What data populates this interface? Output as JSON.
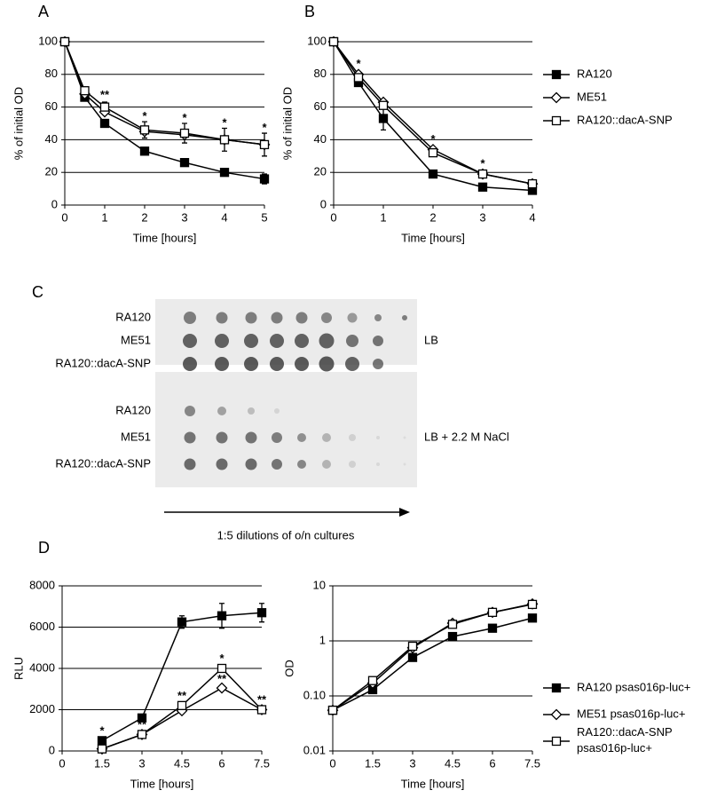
{
  "chart_data": [
    {
      "type": "line",
      "label": "A",
      "x_label": "Time [hours]",
      "y_label": "% of initial OD",
      "x": [
        0,
        0.5,
        1,
        2,
        3,
        4,
        5
      ],
      "xlim": [
        0,
        5
      ],
      "xticks": [
        0,
        1,
        2,
        3,
        4,
        5
      ],
      "ylim": [
        0,
        100
      ],
      "yticks": [
        0,
        20,
        40,
        60,
        80,
        100
      ],
      "grid": true,
      "series": [
        {
          "marker": "square-filled",
          "color": "#000000",
          "values": [
            100,
            66,
            50,
            33,
            26,
            20,
            16
          ],
          "errors": [
            0,
            2,
            2,
            2,
            2,
            2,
            3
          ]
        },
        {
          "marker": "diamond-open",
          "color": "#000000",
          "values": [
            100,
            68,
            57,
            45,
            43,
            40,
            37
          ]
        },
        {
          "marker": "square-open",
          "color": "#000000",
          "values": [
            100,
            70,
            60,
            46,
            44,
            40,
            37
          ],
          "errors": [
            0,
            2,
            3,
            5,
            6,
            7,
            7
          ]
        }
      ],
      "annotations": [
        {
          "text": "**",
          "x": 1,
          "y": 67
        },
        {
          "text": "*",
          "x": 2,
          "y": 54
        },
        {
          "text": "*",
          "x": 3,
          "y": 53
        },
        {
          "text": "*",
          "x": 4,
          "y": 50
        },
        {
          "text": "*",
          "x": 5,
          "y": 47
        }
      ]
    },
    {
      "type": "line",
      "label": "B",
      "x_label": "Time [hours]",
      "y_label": "% of initial OD",
      "x": [
        0,
        0.5,
        1,
        2,
        3,
        4
      ],
      "xlim": [
        0,
        4
      ],
      "xticks": [
        0,
        1,
        2,
        3,
        4
      ],
      "ylim": [
        0,
        100
      ],
      "yticks": [
        0,
        20,
        40,
        60,
        80,
        100
      ],
      "grid": true,
      "legend": "right",
      "series": [
        {
          "name": "RA120",
          "marker": "square-filled",
          "color": "#000000",
          "values": [
            100,
            75,
            53,
            19,
            11,
            9
          ],
          "errors": [
            0,
            2,
            7,
            2,
            1,
            1
          ]
        },
        {
          "name": "ME51",
          "marker": "diamond-open",
          "color": "#000000",
          "values": [
            100,
            80,
            63,
            34,
            19,
            13
          ]
        },
        {
          "name": "RA120::dacA-SNP",
          "marker": "square-open",
          "color": "#000000",
          "values": [
            100,
            78,
            61,
            32,
            19,
            13
          ]
        }
      ],
      "annotations": [
        {
          "text": "*",
          "x": 0.5,
          "y": 86
        },
        {
          "text": "*",
          "x": 2,
          "y": 40
        },
        {
          "text": "*",
          "x": 3,
          "y": 25
        }
      ]
    },
    {
      "type": "line",
      "label": "D",
      "x_label": "Time [hours]",
      "y_label": "RLU",
      "x": [
        1.5,
        3,
        4.5,
        6,
        7.5
      ],
      "xlim": [
        0,
        7.5
      ],
      "xticks": [
        0,
        1.5,
        3,
        4.5,
        6,
        7.5
      ],
      "ylim": [
        0,
        8000
      ],
      "yticks": [
        0,
        2000,
        4000,
        6000,
        8000
      ],
      "grid": true,
      "series": [
        {
          "marker": "square-filled",
          "color": "#000000",
          "values": [
            500,
            1600,
            6250,
            6550,
            6700
          ],
          "errors": [
            0,
            0,
            300,
            600,
            450
          ]
        },
        {
          "marker": "diamond-open",
          "color": "#000000",
          "values": [
            100,
            800,
            1950,
            3050,
            2000
          ]
        },
        {
          "marker": "square-open",
          "color": "#000000",
          "values": [
            100,
            800,
            2200,
            4000,
            2000
          ]
        }
      ],
      "annotations": [
        {
          "text": "*",
          "x": 1.5,
          "y": 950
        },
        {
          "text": "**",
          "x": 3,
          "y": 1250
        },
        {
          "text": "**",
          "x": 4.5,
          "y": 2650
        },
        {
          "text": "*",
          "x": 6,
          "y": 4450
        },
        {
          "text": "**",
          "x": 6,
          "y": 3450
        },
        {
          "text": "**",
          "x": 7.5,
          "y": 2450
        }
      ]
    },
    {
      "type": "line",
      "x_label": "Time [hours]",
      "y_label": "OD",
      "ylog": true,
      "x": [
        0,
        1.5,
        3,
        4.5,
        6,
        7.5
      ],
      "xlim": [
        0,
        7.5
      ],
      "xticks": [
        0,
        1.5,
        3,
        4.5,
        6,
        7.5
      ],
      "ylim": [
        0.01,
        10
      ],
      "yticks": [
        0.01,
        {
          "value": 0.1,
          "label": "0.10"
        },
        1,
        10
      ],
      "grid": true,
      "legend": "right",
      "series": [
        {
          "name": "RA120 psas016p-luc+",
          "marker": "square-filled",
          "color": "#000000",
          "values": [
            0.055,
            0.13,
            0.5,
            1.2,
            1.7,
            2.6
          ]
        },
        {
          "name": "ME51 psas016p-luc+",
          "marker": "diamond-open",
          "color": "#000000",
          "values": [
            0.055,
            0.17,
            0.75,
            2.1,
            3.3,
            4.7
          ]
        },
        {
          "name": "RA120::dacA-SNP psas016p-luc+",
          "marker": "square-open",
          "color": "#000000",
          "values": [
            0.055,
            0.19,
            0.8,
            2.0,
            3.3,
            4.6
          ]
        }
      ]
    }
  ],
  "spot_assay": {
    "label": "C",
    "rows_top": [
      "RA120",
      "ME51",
      "RA120::dacA-SNP"
    ],
    "rows_bottom": [
      "RA120",
      "ME51",
      "RA120::dacA-SNP"
    ],
    "condition_top": "LB",
    "condition_bottom": "LB + 2.2 M NaCl",
    "arrow_label": "1:5 dilutions of o/n cultures"
  }
}
